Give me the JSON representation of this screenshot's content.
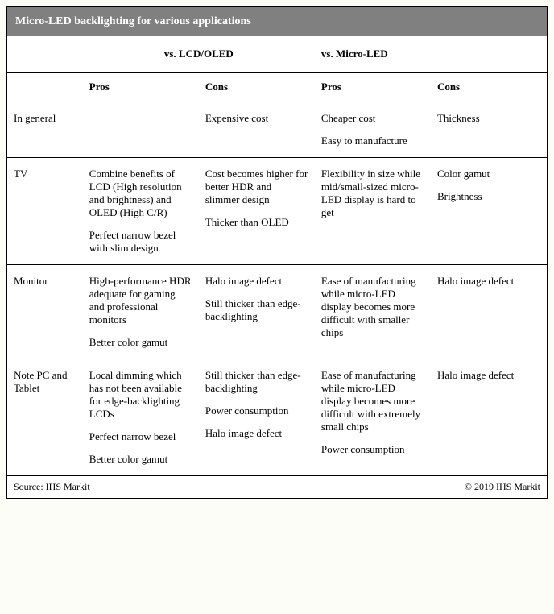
{
  "title": "Micro-LED backlighting for various applications",
  "group_headers": {
    "left": "vs. LCD/OLED",
    "right": "vs. Micro-LED"
  },
  "sub_headers": {
    "pros": "Pros",
    "cons": "Cons"
  },
  "rows": [
    {
      "label": "In general",
      "lcd_pros": [],
      "lcd_cons": [
        "Expensive cost"
      ],
      "mled_pros": [
        "Cheaper cost",
        "Easy to manufacture"
      ],
      "mled_cons": [
        "Thickness"
      ]
    },
    {
      "label": "TV",
      "lcd_pros": [
        "Combine benefits of LCD (High resolution and brightness) and OLED (High C/R)",
        "Perfect narrow bezel with slim design"
      ],
      "lcd_cons": [
        "Cost becomes higher for better HDR and slimmer design",
        "Thicker than OLED"
      ],
      "mled_pros": [
        "Flexibility in size while mid/small-sized micro-LED display is hard to get"
      ],
      "mled_cons": [
        "Color gamut",
        "Brightness"
      ]
    },
    {
      "label": "Monitor",
      "lcd_pros": [
        "High-performance HDR adequate for gaming and professional monitors",
        "Better color gamut"
      ],
      "lcd_cons": [
        "Halo image defect",
        "Still thicker than edge-backlighting"
      ],
      "mled_pros": [
        "Ease of manufacturing while micro-LED display becomes more difficult with smaller chips"
      ],
      "mled_cons": [
        "Halo image defect"
      ]
    },
    {
      "label": "Note PC and Tablet",
      "lcd_pros": [
        "Local dimming which has not been available for edge-backlighting LCDs",
        "Perfect narrow bezel",
        "Better color gamut"
      ],
      "lcd_cons": [
        "Still thicker than edge-backlighting",
        "Power consumption",
        "Halo image defect"
      ],
      "mled_pros": [
        "Ease of manufacturing while micro-LED display becomes more difficult with extremely small chips",
        "Power consumption"
      ],
      "mled_cons": [
        "Halo image defect"
      ]
    }
  ],
  "footer": {
    "source": "Source: IHS Markit",
    "copyright": "© 2019 IHS Markit"
  },
  "colors": {
    "title_bg": "#808080",
    "title_fg": "#ffffff",
    "border": "#000000",
    "page_bg": "#fdfdf8"
  }
}
